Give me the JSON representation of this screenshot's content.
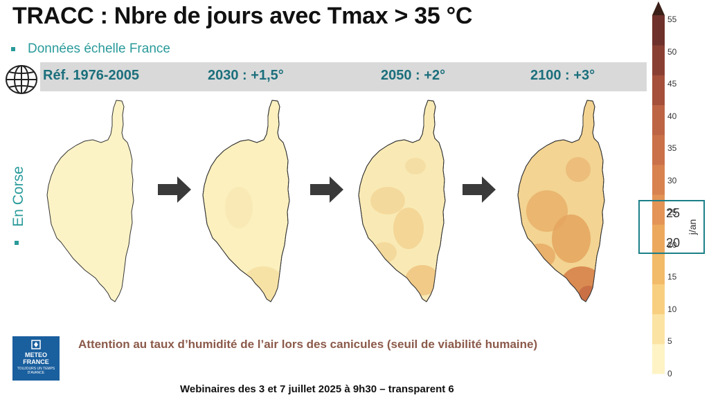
{
  "title": "TRACC : Nbre de jours avec Tmax > 35 °C",
  "scope_bullet": "Données échelle France",
  "periods": [
    {
      "label": "Réf. 1976-2005"
    },
    {
      "label": "2030 : +1,5°"
    },
    {
      "label": "2050 : +2°"
    },
    {
      "label": "2100 : +3°"
    }
  ],
  "side_label": "En Corse",
  "attention_text": "Attention au taux d’humidité de l’air lors des canicules (seuil de viabilité humaine)",
  "footer": "Webinaires des 3 et 7 juillet 2025 à 9h30  – transparent 6",
  "logo": {
    "line1": "METEO",
    "line2": "FRANCE",
    "small": "TOUJOURS UN TEMPS D'AVANCE"
  },
  "colorbar": {
    "unit": "j/an",
    "ticks": [
      {
        "label": "55"
      },
      {
        "label": "50"
      },
      {
        "label": "45"
      },
      {
        "label": "40"
      },
      {
        "label": "35"
      },
      {
        "label": "30"
      },
      {
        "label": "25"
      },
      {
        "label": "20"
      },
      {
        "label": "15"
      },
      {
        "label": "10"
      },
      {
        "label": "5"
      },
      {
        "label": "0"
      }
    ],
    "highlight": [
      "25",
      "20"
    ],
    "colors": [
      "#fdf3c4",
      "#fbe3a4",
      "#f8cf80",
      "#f2bb6a",
      "#eca95e",
      "#e39456",
      "#d8824f",
      "#cb7149",
      "#bd6444",
      "#a4503a",
      "#8a3f33",
      "#6f312b",
      "#3a2018"
    ]
  },
  "icons": {
    "globe": "globe-icon",
    "arrow": "right-arrow-icon"
  }
}
